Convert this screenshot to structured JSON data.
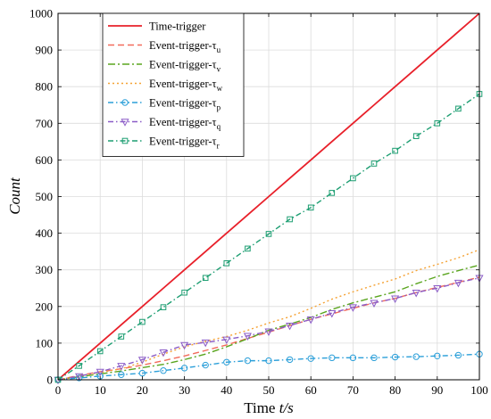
{
  "chart_data": {
    "type": "line",
    "title": "",
    "xlabel": "Time",
    "xlabel_var": "t/s",
    "ylabel": "Count",
    "xlim": [
      0,
      100
    ],
    "ylim": [
      0,
      1000
    ],
    "xticks": [
      0,
      10,
      20,
      30,
      40,
      50,
      60,
      70,
      80,
      90,
      100
    ],
    "yticks": [
      0,
      100,
      200,
      300,
      400,
      500,
      600,
      700,
      800,
      900,
      1000
    ],
    "grid": true,
    "legend_position": "top-left",
    "x": [
      0,
      5,
      10,
      15,
      20,
      25,
      30,
      35,
      40,
      45,
      50,
      55,
      60,
      65,
      70,
      75,
      80,
      85,
      90,
      95,
      100
    ],
    "series": [
      {
        "name": "Time-trigger",
        "sub": "",
        "color": "#e8202a",
        "dash": "",
        "marker": "none",
        "values": [
          0,
          50,
          100,
          150,
          200,
          250,
          300,
          350,
          400,
          450,
          500,
          550,
          600,
          650,
          700,
          750,
          800,
          850,
          900,
          950,
          1000
        ]
      },
      {
        "name": "Event-trigger-τ",
        "sub": "u",
        "color": "#f26b5b",
        "dash": "7,4",
        "marker": "none",
        "values": [
          0,
          12,
          22,
          30,
          40,
          52,
          65,
          80,
          95,
          113,
          130,
          148,
          165,
          180,
          195,
          210,
          222,
          238,
          252,
          266,
          280
        ]
      },
      {
        "name": "Event-trigger-τ",
        "sub": "v",
        "color": "#5aa51f",
        "dash": "8,3,2,3",
        "marker": "none",
        "values": [
          0,
          8,
          16,
          24,
          33,
          42,
          55,
          70,
          90,
          112,
          135,
          152,
          170,
          192,
          210,
          225,
          240,
          262,
          282,
          298,
          313
        ]
      },
      {
        "name": "Event-trigger-τ",
        "sub": "w",
        "color": "#f5a234",
        "dash": "2,3",
        "marker": "none",
        "values": [
          0,
          10,
          20,
          30,
          48,
          70,
          90,
          105,
          118,
          135,
          155,
          172,
          195,
          220,
          240,
          258,
          275,
          298,
          315,
          333,
          355
        ]
      },
      {
        "name": "Event-trigger-τ",
        "sub": "p",
        "color": "#2b9fd9",
        "dash": "6,3,1.5,3",
        "marker": "circle",
        "values": [
          0,
          5,
          10,
          14,
          18,
          25,
          32,
          40,
          48,
          52,
          52,
          55,
          58,
          60,
          60,
          60,
          62,
          63,
          65,
          67,
          70
        ]
      },
      {
        "name": "Event-trigger-τ",
        "sub": "q",
        "color": "#8b5cc7",
        "dash": "6,3,1.5,3",
        "marker": "triangle",
        "values": [
          0,
          10,
          22,
          38,
          55,
          75,
          95,
          102,
          110,
          120,
          132,
          148,
          165,
          182,
          198,
          210,
          222,
          238,
          250,
          265,
          278
        ]
      },
      {
        "name": "Event-trigger-τ",
        "sub": "r",
        "color": "#1d9e72",
        "dash": "6,3,1.5,3",
        "marker": "square",
        "values": [
          0,
          38,
          78,
          118,
          158,
          198,
          238,
          278,
          318,
          358,
          398,
          438,
          470,
          510,
          550,
          590,
          625,
          665,
          700,
          740,
          780
        ]
      }
    ]
  }
}
